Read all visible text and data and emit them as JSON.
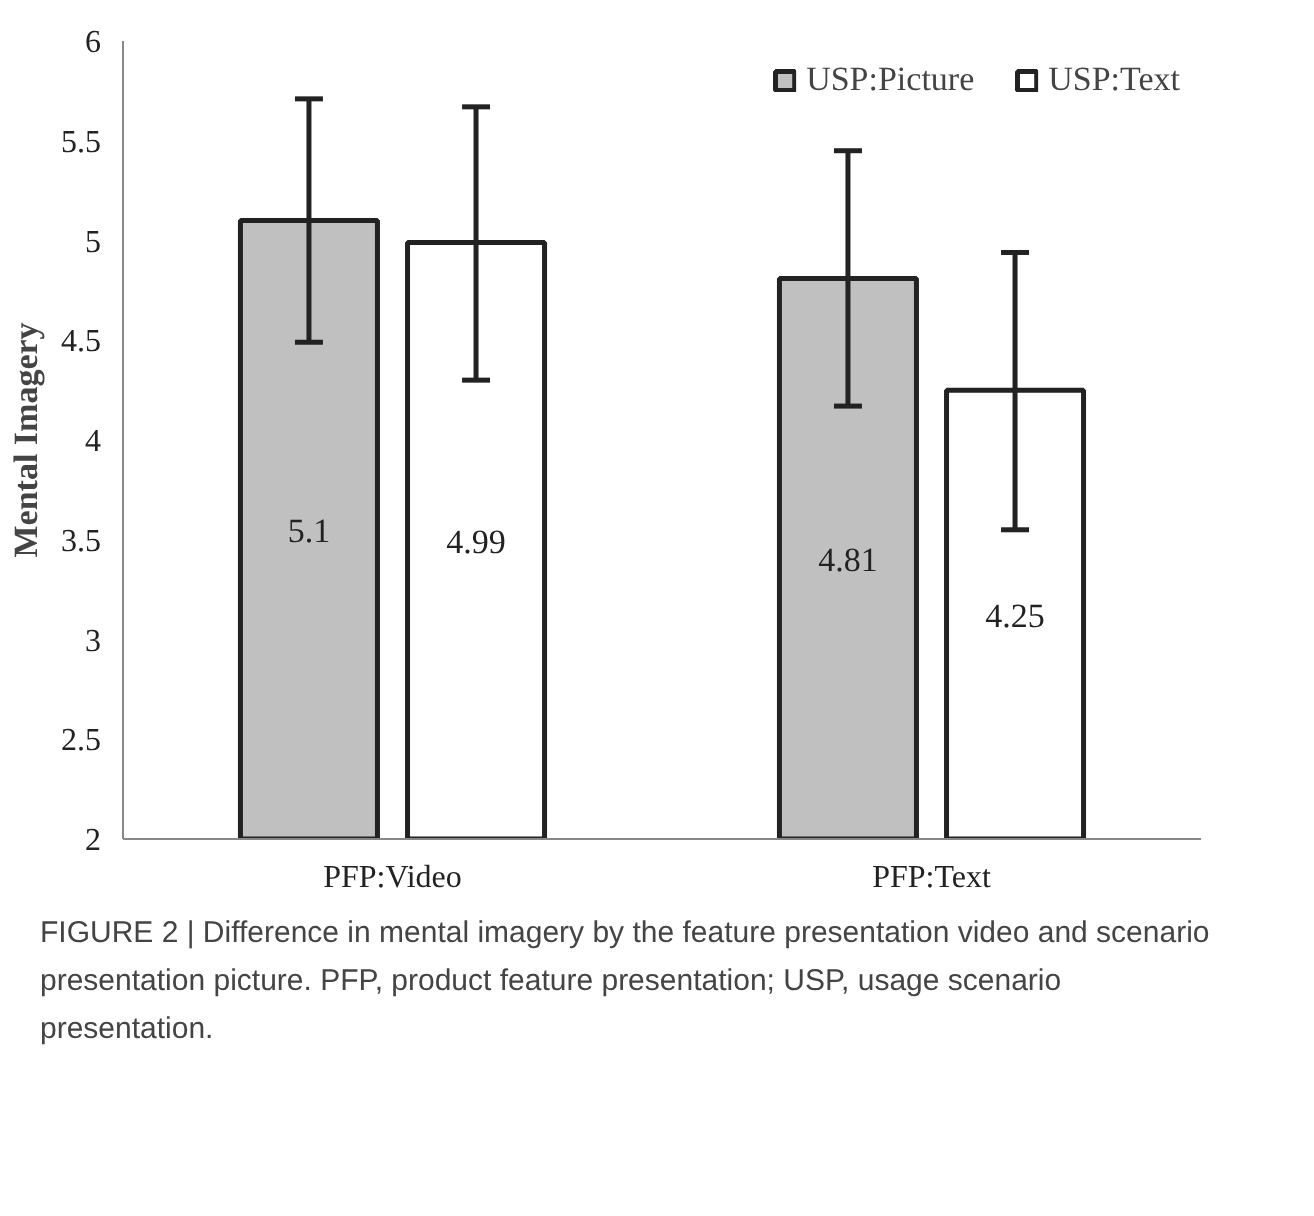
{
  "chart_data": {
    "type": "bar",
    "ylabel": "Mental Imagery",
    "categories": [
      "PFP:Video",
      "PFP:Text"
    ],
    "series": [
      {
        "name": "USP:Picture",
        "color": "#c0c0c0",
        "values": [
          5.1,
          4.81
        ],
        "errors": [
          [
            4.49,
            5.71
          ],
          [
            4.17,
            5.45
          ]
        ]
      },
      {
        "name": "USP:Text",
        "color": "#ffffff",
        "values": [
          4.99,
          4.25
        ],
        "errors": [
          [
            4.3,
            5.67
          ],
          [
            3.55,
            4.94
          ]
        ]
      }
    ],
    "ylim": [
      2,
      6
    ],
    "yticks": [
      2,
      2.5,
      3,
      3.5,
      4,
      4.5,
      5,
      5.5,
      6
    ],
    "data_labels": true,
    "legend": "top right",
    "grid": false,
    "annotations": [
      "FIGURE 2 | Difference in mental imagery by the feature presentation video and scenario presentation picture. PFP, product feature presentation; USP, usage scenario presentation."
    ]
  }
}
